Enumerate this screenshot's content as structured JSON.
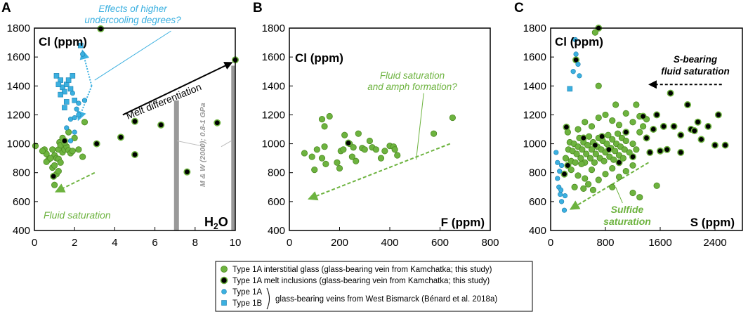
{
  "chart_data": [
    {
      "type": "scatter",
      "panel_letter": "A",
      "ylabel": "Cl (ppm)",
      "xlabel": "H2O",
      "xlabel_main": "H",
      "xlabel_sub": "2",
      "xlabel_tail": "O",
      "xlim": [
        0,
        10
      ],
      "ylim": [
        400,
        1800
      ],
      "xticks": [
        "0",
        "2",
        "4",
        "6",
        "8",
        "10"
      ],
      "yticks": [
        "400",
        "600",
        "800",
        "1000",
        "1200",
        "1400",
        "1600",
        "1800"
      ],
      "series": [
        {
          "name": "Type 1A interstitial glass",
          "points": [
            [
              0.05,
              985
            ],
            [
              0.5,
              960
            ],
            [
              0.6,
              930
            ],
            [
              0.7,
              890
            ],
            [
              0.9,
              960
            ],
            [
              1.0,
              920
            ],
            [
              1.1,
              900
            ],
            [
              1.2,
              960
            ],
            [
              1.25,
              1010
            ],
            [
              1.3,
              990
            ],
            [
              1.4,
              940
            ],
            [
              1.5,
              960
            ],
            [
              1.6,
              980
            ],
            [
              1.7,
              955
            ],
            [
              1.8,
              935
            ],
            [
              1.9,
              950
            ],
            [
              0.9,
              835
            ],
            [
              1.2,
              895
            ],
            [
              1.0,
              850
            ],
            [
              1.3,
              870
            ],
            [
              1.1,
              790
            ],
            [
              0.6,
              875
            ],
            [
              1.4,
              1040
            ],
            [
              1.7,
              1080
            ],
            [
              2.0,
              1040
            ],
            [
              2.4,
              910
            ],
            [
              1.0,
              715
            ],
            [
              0.8,
              900
            ],
            [
              1.5,
              1005
            ],
            [
              0.4,
              950
            ],
            [
              2.5,
              1150
            ],
            [
              2.2,
              960
            ],
            [
              1.2,
              810
            ]
          ]
        },
        {
          "name": "Type 1A melt inclusions",
          "points": [
            [
              0.95,
              775
            ],
            [
              1.5,
              1020
            ],
            [
              3.1,
              1000
            ],
            [
              3.3,
              1795
            ],
            [
              4.3,
              1045
            ],
            [
              5.0,
              1155
            ],
            [
              5.0,
              925
            ],
            [
              6.3,
              1130
            ],
            [
              7.6,
              805
            ],
            [
              9.1,
              1145
            ],
            [
              10.0,
              1580
            ]
          ]
        },
        {
          "name": "Type 1A West Bismarck",
          "points": [
            [
              1.6,
              1110
            ],
            [
              1.8,
              1170
            ],
            [
              1.8,
              1020
            ],
            [
              2.0,
              1080
            ],
            [
              2.2,
              1200
            ],
            [
              2.4,
              1620
            ],
            [
              2.2,
              1280
            ],
            [
              1.9,
              1350
            ],
            [
              2.1,
              1240
            ],
            [
              2.0,
              1180
            ],
            [
              2.5,
              1300
            ]
          ]
        },
        {
          "name": "Type 1B West Bismarck",
          "points": [
            [
              1.1,
              1470
            ],
            [
              1.3,
              1440
            ],
            [
              1.4,
              1390
            ],
            [
              1.5,
              1360
            ],
            [
              1.6,
              1410
            ],
            [
              1.7,
              1440
            ],
            [
              1.3,
              1340
            ],
            [
              1.8,
              1380
            ],
            [
              1.6,
              1290
            ],
            [
              1.5,
              1250
            ],
            [
              2.3,
              1680
            ],
            [
              1.2,
              1410
            ],
            [
              1.9,
              1470
            ],
            [
              2.0,
              1300
            ]
          ]
        }
      ],
      "annotations": {
        "higher_undercooling": [
          "Effects of higher",
          "undercooling degrees?"
        ],
        "melt_diff": "Melt differentiation",
        "fluid_sat": "Fluid saturation",
        "mw_ref": "M & W (2000); 0.8-1 GPa"
      }
    },
    {
      "type": "scatter",
      "panel_letter": "B",
      "ylabel": "Cl (ppm)",
      "xlabel": "F (ppm)",
      "xlim": [
        0,
        800
      ],
      "ylim": [
        400,
        1800
      ],
      "xticks": [
        "0",
        "200",
        "400",
        "600",
        "800"
      ],
      "yticks": [
        "400",
        "600",
        "800",
        "1000",
        "1200",
        "1400",
        "1600",
        "1800"
      ],
      "series": [
        {
          "name": "Type 1A interstitial glass",
          "points": [
            [
              60,
              935
            ],
            [
              90,
              910
            ],
            [
              110,
              960
            ],
            [
              130,
              900
            ],
            [
              145,
              860
            ],
            [
              100,
              820
            ],
            [
              140,
              980
            ],
            [
              160,
              1190
            ],
            [
              130,
              1170
            ],
            [
              190,
              870
            ],
            [
              200,
              830
            ],
            [
              205,
              950
            ],
            [
              215,
              960
            ],
            [
              240,
              1000
            ],
            [
              250,
              910
            ],
            [
              255,
              975
            ],
            [
              265,
              880
            ],
            [
              275,
              1070
            ],
            [
              290,
              970
            ],
            [
              300,
              960
            ],
            [
              320,
              1020
            ],
            [
              330,
              975
            ],
            [
              345,
              960
            ],
            [
              365,
              900
            ],
            [
              380,
              950
            ],
            [
              400,
              985
            ],
            [
              415,
              980
            ],
            [
              420,
              960
            ],
            [
              430,
              920
            ],
            [
              575,
              1070
            ],
            [
              650,
              1180
            ],
            [
              140,
              1120
            ],
            [
              220,
              1060
            ]
          ]
        },
        {
          "name": "Type 1A melt inclusions",
          "points": [
            [
              235,
              1005
            ]
          ]
        }
      ],
      "annotations": {
        "fluid_amph": [
          "Fluid saturation",
          "and amph formation?"
        ]
      }
    },
    {
      "type": "scatter",
      "panel_letter": "C",
      "ylabel": "Cl (ppm)",
      "xlabel": "S (ppm)",
      "xlim": [
        0,
        2800
      ],
      "ylim": [
        400,
        1800
      ],
      "xticks": [
        "0",
        "800",
        "1600",
        "2400"
      ],
      "yticks": [
        "400",
        "600",
        "800",
        "1000",
        "1200",
        "1400",
        "1600",
        "1800"
      ],
      "series": [
        {
          "name": "Type 1A interstitial glass",
          "points": [
            [
              220,
              900
            ],
            [
              260,
              960
            ],
            [
              280,
              1010
            ],
            [
              300,
              880
            ],
            [
              320,
              950
            ],
            [
              340,
              1000
            ],
            [
              360,
              870
            ],
            [
              380,
              930
            ],
            [
              400,
              980
            ],
            [
              420,
              1040
            ],
            [
              440,
              900
            ],
            [
              460,
              960
            ],
            [
              480,
              1010
            ],
            [
              500,
              870
            ],
            [
              520,
              930
            ],
            [
              540,
              990
            ],
            [
              560,
              1050
            ],
            [
              580,
              900
            ],
            [
              600,
              960
            ],
            [
              620,
              1010
            ],
            [
              640,
              870
            ],
            [
              660,
              930
            ],
            [
              680,
              980
            ],
            [
              700,
              1040
            ],
            [
              720,
              900
            ],
            [
              740,
              960
            ],
            [
              760,
              1020
            ],
            [
              780,
              880
            ],
            [
              800,
              940
            ],
            [
              820,
              1000
            ],
            [
              840,
              1060
            ],
            [
              860,
              910
            ],
            [
              880,
              970
            ],
            [
              900,
              1030
            ],
            [
              920,
              890
            ],
            [
              940,
              950
            ],
            [
              960,
              1000
            ],
            [
              980,
              1070
            ],
            [
              1000,
              920
            ],
            [
              1020,
              980
            ],
            [
              1040,
              1040
            ],
            [
              1060,
              900
            ],
            [
              1080,
              960
            ],
            [
              1100,
              1020
            ],
            [
              1150,
              940
            ],
            [
              1200,
              1000
            ],
            [
              1250,
              960
            ],
            [
              1300,
              1080
            ],
            [
              400,
              1100
            ],
            [
              500,
              1150
            ],
            [
              600,
              1120
            ],
            [
              700,
              1180
            ],
            [
              800,
              1200
            ],
            [
              900,
              1160
            ],
            [
              1000,
              1130
            ],
            [
              1100,
              1210
            ],
            [
              1200,
              1150
            ],
            [
              1300,
              1190
            ],
            [
              1350,
              1120
            ],
            [
              1400,
              1170
            ],
            [
              300,
              820
            ],
            [
              400,
              780
            ],
            [
              500,
              760
            ],
            [
              600,
              820
            ],
            [
              700,
              750
            ],
            [
              800,
              790
            ],
            [
              900,
              830
            ],
            [
              1000,
              770
            ],
            [
              1100,
              810
            ],
            [
              1200,
              850
            ],
            [
              350,
              700
            ],
            [
              480,
              690
            ],
            [
              620,
              680
            ],
            [
              900,
              700
            ],
            [
              1200,
              660
            ],
            [
              700,
              1400
            ],
            [
              650,
              1770
            ],
            [
              1550,
              710
            ],
            [
              1300,
              630
            ],
            [
              550,
              720
            ],
            [
              450,
              860
            ],
            [
              250,
              1080
            ],
            [
              950,
              1270
            ],
            [
              1250,
              1270
            ]
          ]
        },
        {
          "name": "Type 1A melt inclusions",
          "points": [
            [
              230,
              1115
            ],
            [
              200,
              790
            ],
            [
              250,
              850
            ],
            [
              370,
              1580
            ],
            [
              480,
              1040
            ],
            [
              650,
              990
            ],
            [
              700,
              1800
            ],
            [
              750,
              1050
            ],
            [
              850,
              960
            ],
            [
              1000,
              870
            ],
            [
              1100,
              1080
            ],
            [
              1200,
              910
            ],
            [
              1350,
              1190
            ],
            [
              1400,
              1040
            ],
            [
              1500,
              1100
            ],
            [
              1600,
              950
            ],
            [
              1700,
              960
            ],
            [
              1750,
              1350
            ],
            [
              1800,
              1120
            ],
            [
              1900,
              1060
            ],
            [
              2000,
              1270
            ],
            [
              2050,
              1100
            ],
            [
              2100,
              1090
            ],
            [
              2150,
              1150
            ],
            [
              2200,
              1030
            ],
            [
              2300,
              1120
            ],
            [
              2400,
              990
            ],
            [
              2550,
              990
            ],
            [
              2450,
              1200
            ],
            [
              1650,
              1120
            ],
            [
              1550,
              1200
            ],
            [
              1450,
              940
            ],
            [
              1900,
              940
            ]
          ]
        },
        {
          "name": "Type 1A West Bismarck",
          "points": [
            [
              80,
              940
            ],
            [
              100,
              870
            ],
            [
              120,
              700
            ],
            [
              150,
              680
            ],
            [
              160,
              600
            ],
            [
              200,
              540
            ],
            [
              100,
              760
            ],
            [
              130,
              810
            ],
            [
              160,
              850
            ],
            [
              140,
              650
            ],
            [
              360,
              1720
            ],
            [
              370,
              1620
            ],
            [
              400,
              1550
            ],
            [
              420,
              1470
            ],
            [
              330,
              1500
            ],
            [
              210,
              640
            ]
          ]
        },
        {
          "name": "Type 1B West Bismarck",
          "points": [
            [
              280,
              1380
            ]
          ]
        }
      ],
      "annotations": {
        "s_bearing": [
          "S-bearing",
          "fluid saturation"
        ],
        "sulfide": [
          "Sulfide",
          "saturation"
        ]
      }
    }
  ],
  "legend": {
    "item1": "Type 1A interstitial glass (glass-bearing vein from Kamchatka; this study)",
    "item2": "Type 1A melt inclusions (glass-bearing vein from Kamchatka; this study)",
    "item3": "Type 1A",
    "item4": "Type 1B",
    "bismarck": "glass-bearing veins from West Bismarck (Bénard et al. 2018a)"
  },
  "colors": {
    "green": "#6db33f",
    "green_dark": "#4d8a22",
    "black": "#000000",
    "blue": "#3bb0e0",
    "annotation_blue": "#3bb0e0",
    "annotation_green": "#6db33f",
    "gray": "#999999"
  }
}
